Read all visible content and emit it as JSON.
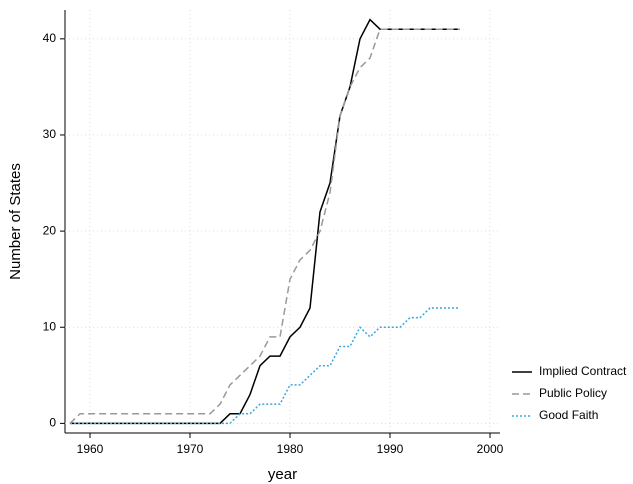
{
  "chart_data": {
    "type": "line",
    "x_label": "year",
    "y_label": "Number of States",
    "x": [
      1958,
      1959,
      1960,
      1961,
      1962,
      1963,
      1964,
      1965,
      1966,
      1967,
      1968,
      1969,
      1970,
      1971,
      1972,
      1973,
      1974,
      1975,
      1976,
      1977,
      1978,
      1979,
      1980,
      1981,
      1982,
      1983,
      1984,
      1985,
      1986,
      1987,
      1988,
      1989,
      1990,
      1991,
      1992,
      1993,
      1994,
      1995,
      1996,
      1997
    ],
    "series": [
      {
        "name": "Implied Contract",
        "color": "#000000",
        "dash": "solid",
        "values": [
          0,
          0,
          0,
          0,
          0,
          0,
          0,
          0,
          0,
          0,
          0,
          0,
          0,
          0,
          0,
          0,
          1,
          1,
          3,
          6,
          7,
          7,
          9,
          10,
          12,
          22,
          25,
          32,
          35,
          40,
          42,
          41,
          41,
          41,
          41,
          41,
          41,
          41,
          41,
          41
        ]
      },
      {
        "name": "Public Policy",
        "color": "#999999",
        "dash": "dashed",
        "values": [
          0,
          1,
          1,
          1,
          1,
          1,
          1,
          1,
          1,
          1,
          1,
          1,
          1,
          1,
          1,
          2,
          4,
          5,
          6,
          7,
          9,
          9,
          15,
          17,
          18,
          20,
          24,
          32,
          35,
          37,
          38,
          41,
          41,
          41,
          41,
          41,
          41,
          41,
          41,
          41
        ]
      },
      {
        "name": "Good Faith",
        "color": "#3aa6dd",
        "dash": "dotted",
        "values": [
          0,
          0,
          0,
          0,
          0,
          0,
          0,
          0,
          0,
          0,
          0,
          0,
          0,
          0,
          0,
          0,
          0,
          1,
          1,
          2,
          2,
          2,
          4,
          4,
          5,
          6,
          6,
          8,
          8,
          10,
          9,
          10,
          10,
          10,
          11,
          11,
          12,
          12,
          12,
          12
        ]
      }
    ],
    "xlim": [
      1957.5,
      2001
    ],
    "xticks": [
      1960,
      1970,
      1980,
      1990,
      2000
    ],
    "ylim": [
      -1,
      43
    ],
    "yticks": [
      0,
      10,
      20,
      30,
      40
    ],
    "grid": true,
    "legend": "lower-right"
  }
}
